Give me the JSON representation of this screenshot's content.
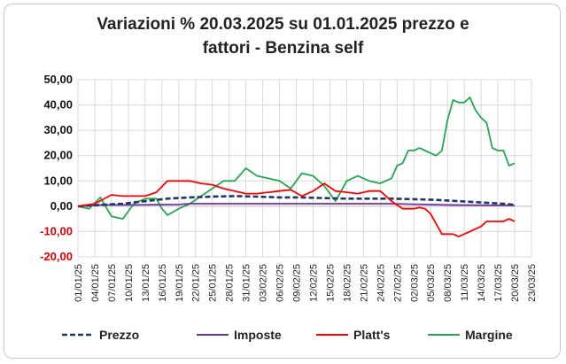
{
  "chart_data": {
    "type": "line",
    "title_line1": "Variazioni % 20.03.2025 su 01.01.2025 prezzo e",
    "title_line2": "fattori - Benzina self",
    "ylim": [
      -20,
      50
    ],
    "yticks": [
      "50,00",
      "40,00",
      "30,00",
      "20,00",
      "10,00",
      "0,00",
      "-10,00",
      "-20,00"
    ],
    "ytick_values": [
      50,
      40,
      30,
      20,
      10,
      0,
      -10,
      -20
    ],
    "xlim_days": [
      0,
      81
    ],
    "xticks": [
      "01/01/25",
      "04/01/25",
      "07/01/25",
      "10/01/25",
      "13/01/25",
      "16/01/25",
      "19/01/25",
      "22/01/25",
      "25/01/25",
      "28/01/25",
      "31/01/25",
      "03/02/25",
      "06/02/25",
      "09/02/25",
      "12/02/25",
      "15/02/25",
      "18/02/25",
      "21/02/25",
      "24/02/25",
      "27/02/25",
      "02/03/25",
      "05/03/25",
      "08/03/25",
      "11/03/25",
      "14/03/25",
      "17/03/25",
      "20/03/25",
      "23/03/25"
    ],
    "grid": true,
    "legend_position": "bottom",
    "series": [
      {
        "name": "Prezzo",
        "color": "#1f3864",
        "style": "dashed",
        "x": [
          0,
          4,
          8,
          12,
          16,
          20,
          24,
          28,
          32,
          36,
          40,
          44,
          48,
          52,
          56,
          60,
          64,
          68,
          72,
          76,
          78
        ],
        "y": [
          0,
          0.5,
          1.0,
          2.0,
          3.0,
          3.5,
          3.8,
          4.0,
          3.8,
          3.5,
          3.5,
          3.2,
          3.0,
          3.0,
          3.0,
          2.8,
          2.5,
          2.0,
          1.5,
          1.0,
          0.5
        ]
      },
      {
        "name": "Imposte",
        "color": "#7030a0",
        "style": "solid",
        "x": [
          0,
          4,
          10,
          18,
          20,
          24,
          40,
          56,
          60,
          66,
          78
        ],
        "y": [
          0,
          0.5,
          0.5,
          0.7,
          1.0,
          1.0,
          1.0,
          1.0,
          0.8,
          0.5,
          0.3
        ]
      },
      {
        "name": "Platt's",
        "color": "#ff0000",
        "style": "solid",
        "x": [
          0,
          3,
          6,
          8,
          10,
          12,
          14,
          16,
          18,
          20,
          22,
          24,
          26,
          28,
          30,
          32,
          34,
          36,
          38,
          40,
          42,
          44,
          46,
          48,
          50,
          52,
          54,
          56,
          58,
          59,
          60,
          61,
          62,
          63,
          64,
          65,
          66,
          67,
          68,
          69,
          70,
          71,
          72,
          73,
          74,
          75,
          76,
          77,
          78
        ],
        "y": [
          0,
          1,
          4.5,
          4,
          4,
          4,
          5.5,
          10,
          10,
          10,
          9,
          8.5,
          7,
          6,
          5,
          5,
          5.5,
          6,
          6.5,
          4,
          6,
          9,
          6,
          5.5,
          5,
          6,
          6,
          2,
          -1,
          -1,
          -1,
          -0.5,
          -1,
          -3,
          -7,
          -11,
          -11,
          -11,
          -12,
          -11,
          -10,
          -9,
          -8,
          -6,
          -6,
          -6,
          -6,
          -5,
          -6
        ]
      },
      {
        "name": "Margine",
        "color": "#22a94d",
        "style": "solid",
        "x": [
          0,
          2,
          4,
          6,
          8,
          10,
          12,
          14,
          15,
          16,
          18,
          20,
          22,
          24,
          26,
          28,
          30,
          32,
          34,
          36,
          38,
          40,
          42,
          44,
          46,
          48,
          50,
          52,
          54,
          56,
          57,
          58,
          59,
          60,
          61,
          62,
          63,
          64,
          65,
          66,
          67,
          68,
          69,
          70,
          71,
          72,
          73,
          74,
          75,
          76,
          77,
          78
        ],
        "y": [
          0,
          -1,
          3.5,
          -4,
          -5,
          1,
          3,
          3,
          -1,
          -3.5,
          -1,
          1,
          4,
          7,
          10,
          10,
          15,
          12,
          11,
          10,
          7,
          13,
          12,
          8,
          2,
          10,
          12,
          10,
          9,
          11,
          16,
          17,
          22,
          22,
          23,
          22,
          21,
          20,
          22,
          34,
          42,
          41,
          41,
          43,
          38,
          35,
          33,
          23,
          22,
          22,
          16,
          17
        ]
      }
    ]
  }
}
